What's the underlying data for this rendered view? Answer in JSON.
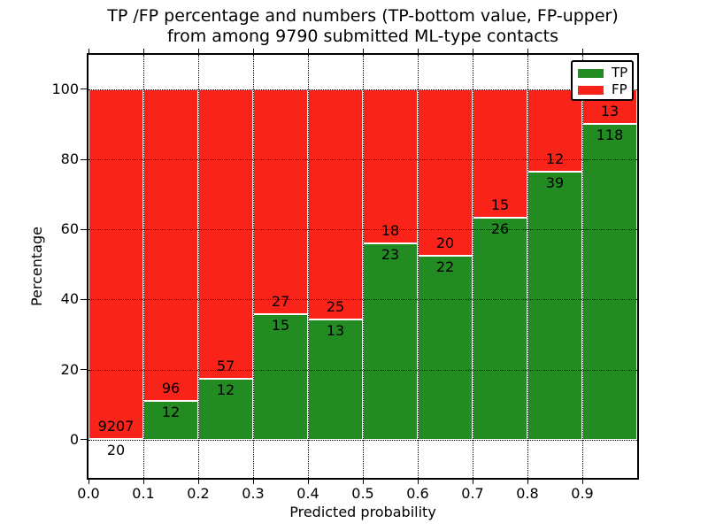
{
  "title": {
    "line1": "TP /FP percentage and numbers (TP-bottom value, FP-upper)",
    "line2": "from among 9790 submitted ML-type contacts"
  },
  "axes": {
    "xlabel": "Predicted probability",
    "ylabel": "Percentage",
    "xtick_labels": [
      "0.0",
      "0.1",
      "0.2",
      "0.3",
      "0.4",
      "0.5",
      "0.6",
      "0.7",
      "0.8",
      "0.9"
    ],
    "yticks": [
      0,
      20,
      40,
      60,
      80,
      100
    ],
    "xlim": [
      0.0,
      1.0
    ],
    "ylim": [
      -10.9,
      109.8
    ],
    "grid": "dotted-black"
  },
  "legend": {
    "position": "upper-right",
    "items": [
      {
        "label": "TP",
        "color": "#228b22"
      },
      {
        "label": "FP",
        "color": "#fa231a"
      }
    ]
  },
  "chart_data": {
    "type": "bar",
    "stacked": true,
    "title": "TP /FP percentage and numbers (TP-bottom value, FP-upper) from among 9790 submitted ML-type contacts",
    "xlabel": "Predicted probability",
    "ylabel": "Percentage",
    "categories": [
      "0.0-0.1",
      "0.1-0.2",
      "0.2-0.3",
      "0.3-0.4",
      "0.4-0.5",
      "0.5-0.6",
      "0.6-0.7",
      "0.7-0.8",
      "0.8-0.9",
      "0.9-1.0"
    ],
    "bin_start": [
      0.0,
      0.1,
      0.2,
      0.3,
      0.4,
      0.5,
      0.6,
      0.7,
      0.8,
      0.9
    ],
    "bin_width": 0.1,
    "series": [
      {
        "name": "TP",
        "color": "#228b22",
        "counts": [
          20,
          12,
          12,
          15,
          13,
          23,
          22,
          26,
          39,
          118
        ]
      },
      {
        "name": "FP",
        "color": "#fa231a",
        "counts": [
          9207,
          96,
          57,
          27,
          25,
          18,
          20,
          15,
          12,
          13
        ]
      }
    ],
    "tp_percent": [
      0.22,
      11.11,
      17.39,
      35.71,
      34.21,
      56.1,
      52.38,
      63.41,
      76.47,
      90.08
    ],
    "total_contacts": 9790,
    "ylim": [
      -10.9,
      109.8
    ],
    "legend_position": "upper-right",
    "grid": "on"
  },
  "colors": {
    "tp": "#228b22",
    "fp": "#fa231a",
    "background": "#ffffff",
    "frame": "#000000",
    "bar_edge": "#ffffff"
  }
}
